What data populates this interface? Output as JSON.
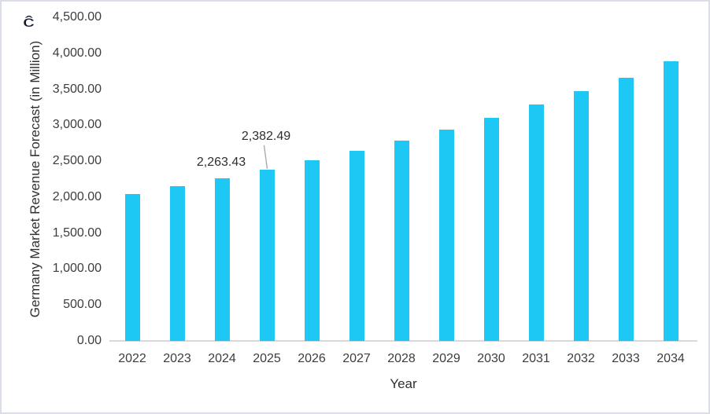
{
  "chart_data": {
    "type": "bar",
    "title": "",
    "xlabel": "Year",
    "ylabel": "Germany Market Revenue Forecast (in Million)",
    "categories": [
      "2022",
      "2023",
      "2024",
      "2025",
      "2026",
      "2027",
      "2028",
      "2029",
      "2030",
      "2031",
      "2032",
      "2033",
      "2034"
    ],
    "values": [
      2045,
      2150,
      2263.43,
      2382.49,
      2515,
      2645,
      2785,
      2940,
      3105,
      3290,
      3475,
      3660,
      3890
    ],
    "labeled_points": [
      {
        "category": "2024",
        "label": "2,263.43",
        "leader": false
      },
      {
        "category": "2025",
        "label": "2,382.49",
        "leader": true
      }
    ],
    "ylim": [
      0,
      4500
    ],
    "ytick_step": 500,
    "ytick_labels": [
      "0.00",
      "500.00",
      "1,000.00",
      "1,500.00",
      "2,000.00",
      "2,500.00",
      "3,000.00",
      "3,500.00",
      "4,000.00",
      "4,500.00"
    ],
    "grid": false,
    "legend": false,
    "bar_color": "#1EC8F4",
    "axis_line_color": "#d9d9d9",
    "leader_line_color": "#ababab",
    "text_color": "#3d3d3d"
  },
  "decorations": {
    "artifact_glyph": "ĉ"
  }
}
